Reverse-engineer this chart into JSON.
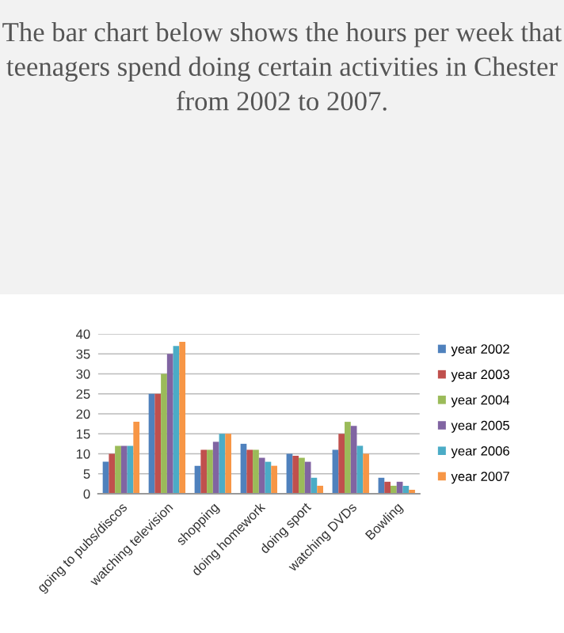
{
  "chart_data": {
    "type": "bar",
    "title": "The bar chart below shows the hours per week that teenagers spend doing certain activities in Chester from 2002 to 2007.",
    "categories": [
      "going to pubs/discos",
      "watching television",
      "shopping",
      "doing homework",
      "doing sport",
      "watching DVDs",
      "Bowling"
    ],
    "series": [
      {
        "name": "year 2002",
        "color": "#4f81bd",
        "values": [
          8,
          25,
          7,
          12.5,
          10,
          11,
          4
        ]
      },
      {
        "name": "year 2003",
        "color": "#c0504d",
        "values": [
          10,
          25,
          11,
          11,
          9.5,
          15,
          3
        ]
      },
      {
        "name": "year 2004",
        "color": "#9bbb59",
        "values": [
          12,
          30,
          11,
          11,
          9,
          18,
          2
        ]
      },
      {
        "name": "year 2005",
        "color": "#8064a2",
        "values": [
          12,
          35,
          13,
          9,
          8,
          17,
          3
        ]
      },
      {
        "name": "year 2006",
        "color": "#4bacc6",
        "values": [
          12,
          37,
          15,
          8,
          4,
          12,
          2
        ]
      },
      {
        "name": "year 2007",
        "color": "#f79646",
        "values": [
          18,
          38,
          15,
          7,
          2,
          10,
          1
        ]
      }
    ],
    "ylim": [
      0,
      40
    ],
    "yticks": [
      0,
      5,
      10,
      15,
      20,
      25,
      30,
      35,
      40
    ],
    "grid": "y",
    "legend": "right"
  }
}
